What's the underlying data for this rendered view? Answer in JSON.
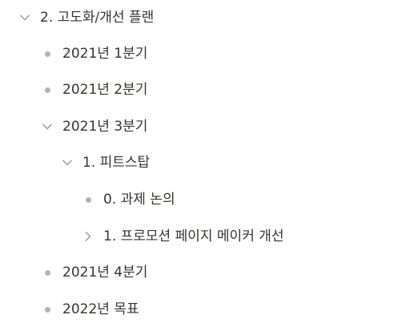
{
  "outline": {
    "items": [
      {
        "label": "2. 고도화/개선 플랜",
        "state": "expanded"
      },
      {
        "label": "2021년 1분기",
        "state": "leaf"
      },
      {
        "label": "2021년 2분기",
        "state": "leaf"
      },
      {
        "label": "2021년 3분기",
        "state": "expanded"
      },
      {
        "label": "1. 피트스탑",
        "state": "expanded"
      },
      {
        "label": "0. 과제 논의",
        "state": "leaf"
      },
      {
        "label": "1. 프로모션 페이지 메이커 개선",
        "state": "collapsed"
      },
      {
        "label": "2021년 4분기",
        "state": "leaf"
      },
      {
        "label": "2022년 목표",
        "state": "leaf"
      }
    ]
  },
  "icons": {
    "expanded": "chevron-down-icon",
    "collapsed": "chevron-right-icon",
    "leaf": "bullet-dot-icon"
  },
  "colors": {
    "text": "#37352f",
    "icon": "#a5a5a2",
    "bullet": "#b4b4b0"
  }
}
